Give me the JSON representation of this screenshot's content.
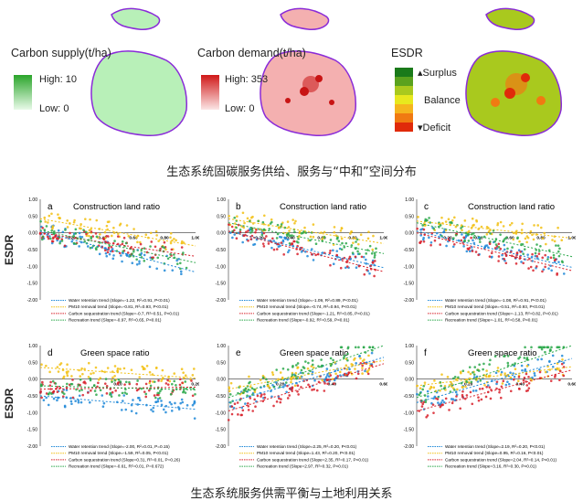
{
  "maps": [
    {
      "title": "Carbon supply(t/ha)",
      "high_label": "High:",
      "high_value": "10",
      "low_label": "Low:",
      "low_value": "0",
      "fill": "#b8f0b8",
      "accent": "#2aa52a"
    },
    {
      "title": "Carbon demand(t/ha)",
      "high_label": "High:",
      "high_value": "353",
      "low_label": "Low:",
      "low_value": "0",
      "fill": "#f4b0b0",
      "accent": "#d01818"
    },
    {
      "title": "ESDR",
      "legend": [
        "Surplus",
        "Balance",
        "Deficit"
      ],
      "colors": [
        "#1a7a1a",
        "#5aa21e",
        "#a9c91e",
        "#e8e81e",
        "#f5b51e",
        "#f07a12",
        "#e02a0a"
      ]
    }
  ],
  "caption_top": "生态系统固碳服务供给、服务与“中和”空间分布",
  "caption_bottom": "生态系统服务供需平衡与土地利用关系",
  "ylabel": "ESDR",
  "colors": {
    "water": "#1e88d8",
    "pm10": "#f2c012",
    "carbon": "#d8202a",
    "recreation": "#2aa84a"
  },
  "chart_data": [
    {
      "type": "scatter",
      "panel": "a",
      "title": "Construction land ratio",
      "xlim": [
        0,
        1
      ],
      "ylim": [
        -2,
        1
      ],
      "xticks": [
        "0.20",
        "0.40",
        "0.60",
        "0.80",
        "1.00"
      ],
      "yticks": [
        "1.00",
        "0.50",
        "0.00",
        "-0.50",
        "-1.00",
        "-1.50",
        "-2.00"
      ],
      "legend": [
        "Water retention trend (Slope=-1.22, R²=0.91, P<0.01)",
        "PM10 removal trend (Slope=-0.81, R²=0.93, P<0.01)",
        "Carbon sequestration trend (Slope=-0.7, R²=0.51, P<0.01)",
        "Recreation trend (Slope=-0.97, R²=0.65, P<0.01)"
      ],
      "series": [
        {
          "name": "Water retention trend",
          "slope": -1.22,
          "intercept": 0.05
        },
        {
          "name": "PM10 removal trend",
          "slope": -0.81,
          "intercept": 0.42
        },
        {
          "name": "Carbon sequestration trend",
          "slope": -0.7,
          "intercept": 0.0
        },
        {
          "name": "Recreation trend",
          "slope": -0.97,
          "intercept": 0.08
        }
      ]
    },
    {
      "type": "scatter",
      "panel": "b",
      "title": "Construction land ratio",
      "xlim": [
        0,
        1
      ],
      "ylim": [
        -2,
        1
      ],
      "xticks": [
        "0.20",
        "0.40",
        "0.60",
        "0.80",
        "1.00"
      ],
      "yticks": [
        "1.00",
        "0.50",
        "0.00",
        "-0.50",
        "-1.00",
        "-1.50",
        "-2.00"
      ],
      "legend": [
        "Water retention trend (Slope=-1.09, R²=0.89, P<0.01)",
        "PM10 removal trend (Slope=-0.74, R²=0.94, P<0.01)",
        "Carbon sequestration trend (Slope=-1.21, R²=0.85, P<0.01)",
        "Recreation trend (Slope=-0.92, R²=0.59, P<0.01)"
      ],
      "series": [
        {
          "name": "Water retention trend",
          "slope": -1.09,
          "intercept": 0.05
        },
        {
          "name": "PM10 removal trend",
          "slope": -0.74,
          "intercept": 0.42
        },
        {
          "name": "Carbon sequestration trend",
          "slope": -1.21,
          "intercept": 0.05
        },
        {
          "name": "Recreation trend",
          "slope": -0.92,
          "intercept": 0.3
        }
      ]
    },
    {
      "type": "scatter",
      "panel": "c",
      "title": "Construction land ratio",
      "xlim": [
        0,
        1
      ],
      "ylim": [
        -2,
        1
      ],
      "xticks": [
        "0.20",
        "0.40",
        "0.60",
        "0.80",
        "1.00"
      ],
      "yticks": [
        "1.00",
        "0.50",
        "0.00",
        "-0.50",
        "-1.00",
        "-1.50",
        "-2.00"
      ],
      "legend": [
        "Water retention trend (Slope=-1.08, R²=0.91, P<0.01)",
        "PM10 removal trend (Slope=-0.51, R²=0.93, P<0.01)",
        "Carbon sequestration trend (Slope=-1.13, R²=0.82, P<0.01)",
        "Recreation trend (Slope=-1.01, R²=0.58, P<0.01)"
      ],
      "series": [
        {
          "name": "Water retention trend",
          "slope": -1.08,
          "intercept": 0.05
        },
        {
          "name": "PM10 removal trend",
          "slope": -0.51,
          "intercept": 0.35
        },
        {
          "name": "Carbon sequestration trend",
          "slope": -1.13,
          "intercept": 0.0
        },
        {
          "name": "Recreation trend",
          "slope": -1.01,
          "intercept": 0.3
        }
      ]
    },
    {
      "type": "scatter",
      "panel": "d",
      "title": "Green space ratio",
      "xlim": [
        0,
        0.2
      ],
      "ylim": [
        -2,
        1
      ],
      "xticks": [
        "0.10",
        "0.20"
      ],
      "yticks": [
        "1.00",
        "0.50",
        "0.00",
        "-0.50",
        "-1.00",
        "-1.50",
        "-2.00"
      ],
      "legend": [
        "Water retention trend (Slope=-2.00, R²=0.01, P=0.15)",
        "PM10 removal trend (Slope=-1.59, R²=0.05, P<0.01)",
        "Carbon sequestration trend (Slope=0.31, R²=0.01, P=0.26)",
        "Recreation trend (Slope=-0.61, R²=0.01, P=0.672)"
      ],
      "series": [
        {
          "name": "Water retention trend",
          "slope": -2.0,
          "intercept": -0.5
        },
        {
          "name": "PM10 removal trend",
          "slope": -1.59,
          "intercept": 0.35
        },
        {
          "name": "Carbon sequestration trend",
          "slope": 0.31,
          "intercept": -0.3
        },
        {
          "name": "Recreation trend",
          "slope": -0.61,
          "intercept": -0.2
        }
      ]
    },
    {
      "type": "scatter",
      "panel": "e",
      "title": "Green space ratio",
      "xlim": [
        0,
        0.6
      ],
      "ylim": [
        -2,
        1
      ],
      "xticks": [
        "0.20",
        "0.40",
        "0.60"
      ],
      "yticks": [
        "1.00",
        "0.50",
        "0.00",
        "-0.50",
        "-1.00",
        "-1.50",
        "-2.00"
      ],
      "legend": [
        "Water retention trend (Slope=2.25, R²=0.20, P<0.01)",
        "PM10 removal trend (Slope=1.43, R²=0.20, P<0.01)",
        "Carbon sequestration trend (Slope=2.35, R²=0.17, P<0.01)",
        "Recreation trend (Slope=2.97, R²=0.32, P<0.01)"
      ],
      "series": [
        {
          "name": "Water retention trend",
          "slope": 2.25,
          "intercept": -0.7
        },
        {
          "name": "PM10 removal trend",
          "slope": 1.43,
          "intercept": -0.3
        },
        {
          "name": "Carbon sequestration trend",
          "slope": 2.35,
          "intercept": -0.95
        },
        {
          "name": "Recreation trend",
          "slope": 2.97,
          "intercept": -0.55
        }
      ]
    },
    {
      "type": "scatter",
      "panel": "f",
      "title": "Green space ratio",
      "xlim": [
        0,
        0.6
      ],
      "ylim": [
        -2,
        1
      ],
      "xticks": [
        "0.20",
        "0.40",
        "0.60"
      ],
      "yticks": [
        "1.00",
        "0.50",
        "0.00",
        "-0.50",
        "-1.00",
        "-1.50",
        "-2.00"
      ],
      "legend": [
        "Water retention trend (Slope=2.19, R²=0.20, P<0.01)",
        "PM10 removal trend (Slope=0.95, R²=0.16, P<0.01)",
        "Carbon sequestration trend (Slope=2.04, R²=0.14, P<0.01)",
        "Recreation trend (Slope=3.16, R²=0.30, P<0.01)"
      ],
      "series": [
        {
          "name": "Water retention trend",
          "slope": 2.19,
          "intercept": -0.7
        },
        {
          "name": "PM10 removal trend",
          "slope": 0.95,
          "intercept": -0.2
        },
        {
          "name": "Carbon sequestration trend",
          "slope": 2.04,
          "intercept": -0.95
        },
        {
          "name": "Recreation trend",
          "slope": 3.16,
          "intercept": -0.55
        }
      ]
    }
  ]
}
